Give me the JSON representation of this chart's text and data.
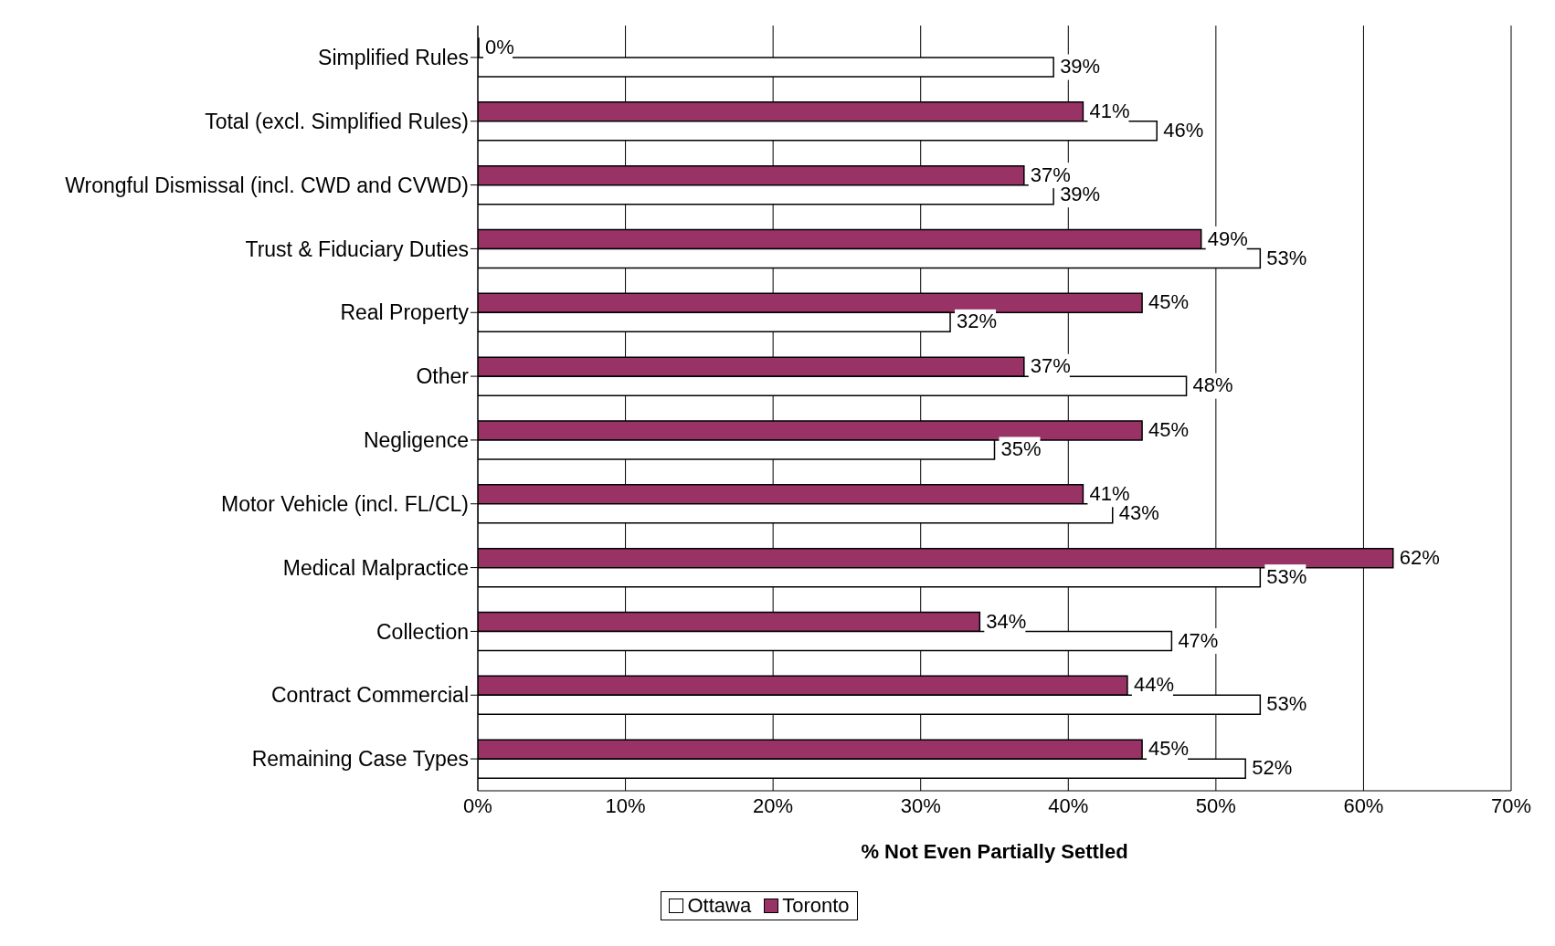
{
  "chart_data": {
    "type": "bar",
    "orientation": "horizontal",
    "xlabel": "% Not Even Partially Settled",
    "categories": [
      "Simplified Rules",
      "Total (excl. Simplified Rules)",
      "Wrongful Dismissal (incl. CWD and CVWD)",
      "Trust & Fiduciary Duties",
      "Real Property",
      "Other",
      "Negligence",
      "Motor Vehicle (incl. FL/CL)",
      "Medical Malpractice",
      "Collection",
      "Contract Commercial",
      "Remaining Case Types"
    ],
    "series": [
      {
        "name": "Ottawa",
        "color": "#ffffff",
        "values": [
          39,
          46,
          39,
          53,
          32,
          48,
          35,
          43,
          53,
          47,
          53,
          52
        ],
        "value_labels": [
          "39%",
          "46%",
          "39%",
          "53%",
          "32%",
          "48%",
          "35%",
          "43%",
          "53%",
          "47%",
          "53%",
          "52%"
        ]
      },
      {
        "name": "Toronto",
        "color": "#993366",
        "values": [
          0,
          41,
          37,
          49,
          45,
          37,
          45,
          41,
          62,
          34,
          44,
          45
        ],
        "value_labels": [
          "0%",
          "41%",
          "37%",
          "49%",
          "45%",
          "37%",
          "45%",
          "41%",
          "62%",
          "34%",
          "44%",
          "45%"
        ]
      }
    ],
    "xlim": [
      0,
      70
    ],
    "xticks": [
      {
        "value": 0,
        "label": "0%"
      },
      {
        "value": 10,
        "label": "10%"
      },
      {
        "value": 20,
        "label": "20%"
      },
      {
        "value": 30,
        "label": "30%"
      },
      {
        "value": 40,
        "label": "40%"
      },
      {
        "value": 50,
        "label": "50%"
      },
      {
        "value": 60,
        "label": "60%"
      },
      {
        "value": 70,
        "label": "70%"
      }
    ],
    "grid": "x",
    "legend": "bottom"
  }
}
